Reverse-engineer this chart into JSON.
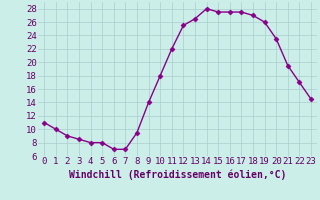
{
  "x": [
    0,
    1,
    2,
    3,
    4,
    5,
    6,
    7,
    8,
    9,
    10,
    11,
    12,
    13,
    14,
    15,
    16,
    17,
    18,
    19,
    20,
    21,
    22,
    23
  ],
  "y": [
    11,
    10,
    9,
    8.5,
    8,
    8,
    7,
    7,
    9.5,
    14,
    18,
    22,
    25.5,
    26.5,
    28,
    27.5,
    27.5,
    27.5,
    27,
    26,
    23.5,
    19.5,
    17,
    14.5
  ],
  "line_color": "#880088",
  "marker": "D",
  "marker_size": 2.5,
  "bg_color": "#cceee8",
  "grid_color": "#aacccc",
  "xlabel": "Windchill (Refroidissement éolien,°C)",
  "xlabel_color": "#660066",
  "tick_color": "#660066",
  "xlim": [
    -0.5,
    23.5
  ],
  "ylim": [
    6,
    29
  ],
  "yticks": [
    6,
    8,
    10,
    12,
    14,
    16,
    18,
    20,
    22,
    24,
    26,
    28
  ],
  "xticks": [
    0,
    1,
    2,
    3,
    4,
    5,
    6,
    7,
    8,
    9,
    10,
    11,
    12,
    13,
    14,
    15,
    16,
    17,
    18,
    19,
    20,
    21,
    22,
    23
  ],
  "xlabel_fontsize": 7,
  "tick_fontsize": 6.5
}
